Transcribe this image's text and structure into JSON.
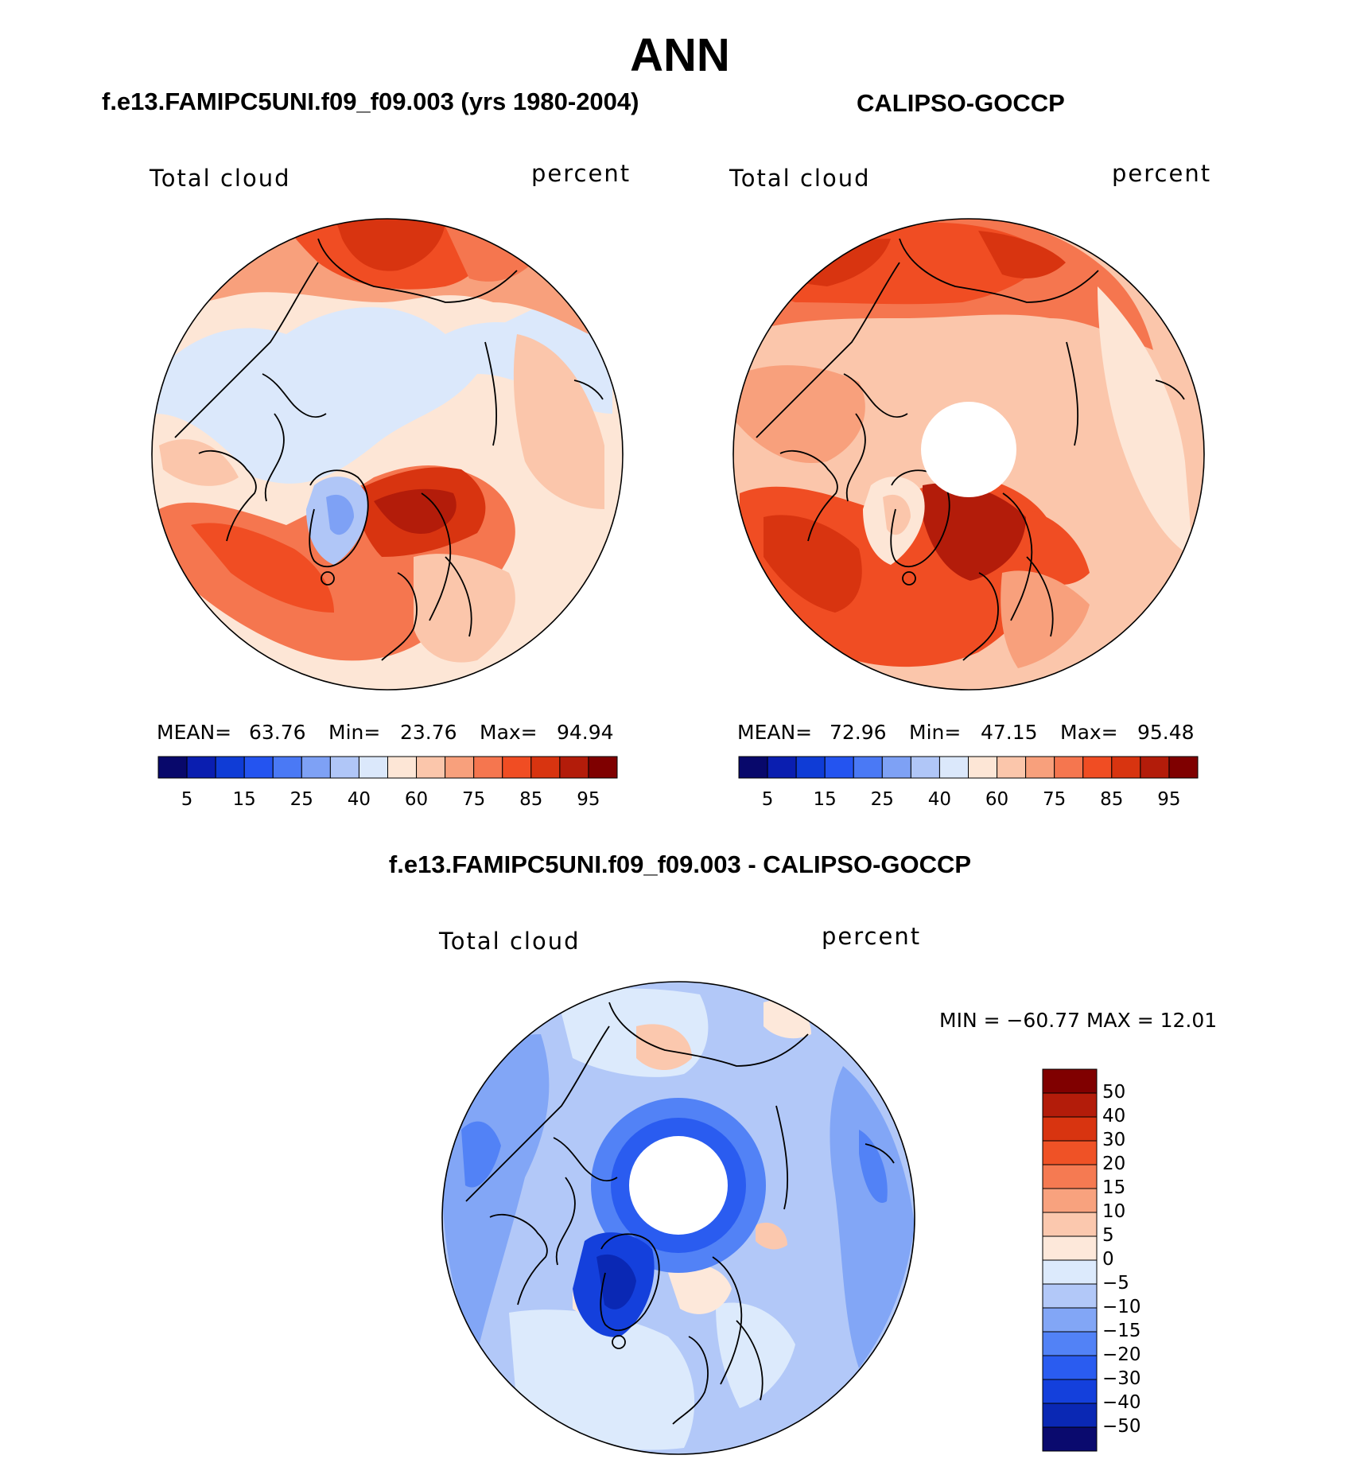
{
  "main_title": "ANN",
  "colors": {
    "scale": [
      "#08086b",
      "#0a1eb0",
      "#0f3cd6",
      "#2454f0",
      "#4a79f5",
      "#7ea1f5",
      "#b0c6f7",
      "#dbe8fb",
      "#fde6d6",
      "#fbc6ab",
      "#f8a07c",
      "#f5764f",
      "#f04d23",
      "#d83410",
      "#b31c0a",
      "#7f0000"
    ],
    "diff_scale": [
      "#0a0a6e",
      "#0a28b4",
      "#1440dc",
      "#2a5cf0",
      "#5282f6",
      "#82a6f6",
      "#b2c8f8",
      "#dceafc",
      "#fde8da",
      "#fbc8ae",
      "#f8a27e",
      "#f57a52",
      "#ef5226",
      "#d83410",
      "#b31c0a",
      "#800000"
    ],
    "coastline": "#000000"
  },
  "panels": [
    {
      "title": "f.e13.FAMIPC5UNI.f09_f09.003 (yrs 1980-2004)",
      "left_label": "Total cloud",
      "right_label": "percent",
      "stats": {
        "mean_label": "MEAN=",
        "mean": "63.76",
        "min_label": "Min=",
        "min": "23.76",
        "max_label": "Max=",
        "max": "94.94"
      },
      "colorbar_ticks": [
        "5",
        "15",
        "25",
        "40",
        "60",
        "75",
        "85",
        "95"
      ]
    },
    {
      "title": "CALIPSO-GOCCP",
      "left_label": "Total cloud",
      "right_label": "percent",
      "stats": {
        "mean_label": "MEAN=",
        "mean": "72.96",
        "min_label": "Min=",
        "min": "47.15",
        "max_label": "Max=",
        "max": "95.48"
      },
      "colorbar_ticks": [
        "5",
        "15",
        "25",
        "40",
        "60",
        "75",
        "85",
        "95"
      ]
    }
  ],
  "diff_panel": {
    "title": "f.e13.FAMIPC5UNI.f09_f09.003 - CALIPSO-GOCCP",
    "left_label": "Total cloud",
    "right_label": "percent",
    "minmax": "MIN = −60.77 MAX =   12.01",
    "colorbar_ticks": [
      "50",
      "40",
      "30",
      "20",
      "15",
      "10",
      "5",
      "0",
      "−5",
      "−10",
      "−15",
      "−20",
      "−30",
      "−40",
      "−50"
    ]
  }
}
